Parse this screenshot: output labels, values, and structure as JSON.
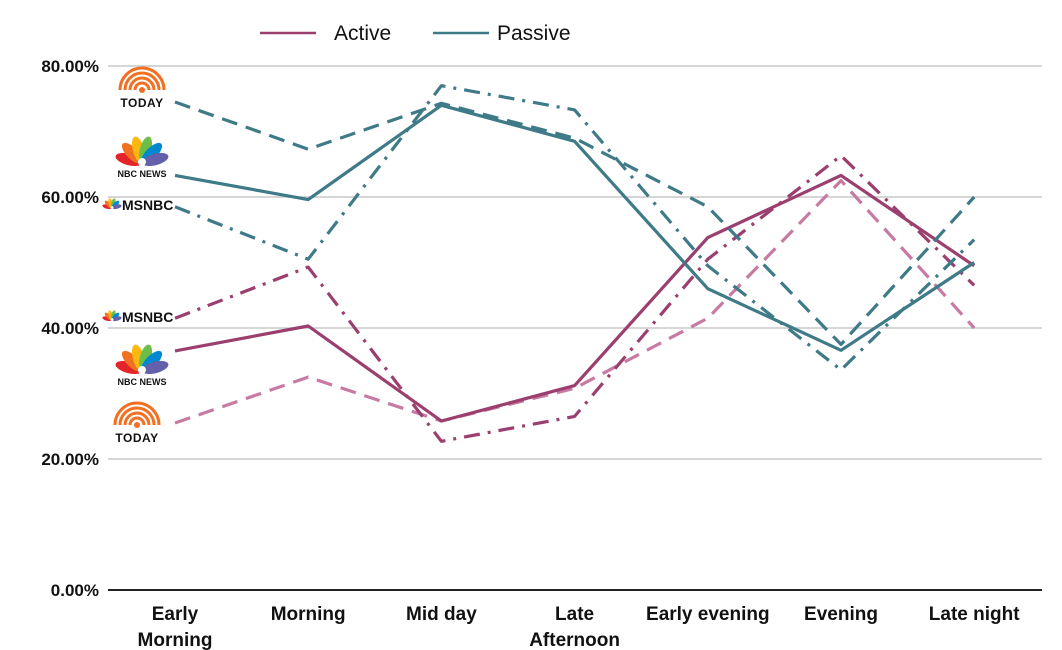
{
  "chart_data": {
    "type": "line",
    "title": "",
    "xlabel": "",
    "ylabel": "",
    "ylim": [
      0,
      80
    ],
    "y_tick_values": [
      0,
      20,
      40,
      60,
      80
    ],
    "y_tick_labels": [
      "0.00%",
      "20.00%",
      "40.00%",
      "60.00%",
      "80.00%"
    ],
    "categories": [
      [
        "Early",
        "Morning"
      ],
      [
        "Morning"
      ],
      [
        "Mid day"
      ],
      [
        "Late",
        "Afternoon"
      ],
      [
        "Early evening"
      ],
      [
        "Evening"
      ],
      [
        "Late night"
      ]
    ],
    "grid": true,
    "legend": {
      "placement": "top-center",
      "entries": [
        {
          "label": "Active",
          "color": "#9b3f6e"
        },
        {
          "label": "Passive",
          "color": "#3e7a87"
        }
      ]
    },
    "series": [
      {
        "group": "Active",
        "network": "TODAY",
        "style": "dashed",
        "color": "#c77aa2",
        "values": [
          25.5,
          32.5,
          25.8,
          30.8,
          41.5,
          62.5,
          40.0
        ]
      },
      {
        "group": "Active",
        "network": "NBC NEWS",
        "style": "solid",
        "color": "#9b3f6e",
        "values": [
          36.5,
          40.3,
          25.8,
          31.2,
          53.8,
          63.3,
          49.5
        ]
      },
      {
        "group": "Active",
        "network": "MSNBC",
        "style": "dashdot",
        "color": "#9b3f6e",
        "values": [
          41.5,
          49.3,
          22.7,
          26.5,
          50.5,
          66.3,
          46.5
        ]
      },
      {
        "group": "Passive",
        "network": "TODAY",
        "style": "dashed",
        "color": "#3e7a87",
        "values": [
          74.5,
          67.3,
          74.3,
          69.0,
          58.5,
          37.5,
          60.0
        ]
      },
      {
        "group": "Passive",
        "network": "NBC NEWS",
        "style": "solid",
        "color": "#3e7a87",
        "values": [
          63.3,
          59.6,
          74.0,
          68.5,
          46.0,
          36.6,
          50.0
        ]
      },
      {
        "group": "Passive",
        "network": "MSNBC",
        "style": "dashdot",
        "color": "#3e7a87",
        "values": [
          58.5,
          50.5,
          77.0,
          73.3,
          49.5,
          33.6,
          53.5
        ]
      }
    ],
    "series_logos": [
      {
        "network": "TODAY",
        "group": "Passive",
        "label": "TODAY",
        "icon": "today-rainbow-icon"
      },
      {
        "network": "NBC NEWS",
        "group": "Passive",
        "label": "NBC NEWS",
        "icon": "peacock-icon"
      },
      {
        "network": "MSNBC",
        "group": "Passive",
        "label": "MSNBC",
        "icon": "peacock-icon"
      },
      {
        "network": "MSNBC",
        "group": "Active",
        "label": "MSNBC",
        "icon": "peacock-icon"
      },
      {
        "network": "NBC NEWS",
        "group": "Active",
        "label": "NBC NEWS",
        "icon": "peacock-icon"
      },
      {
        "network": "TODAY",
        "group": "Active",
        "label": "TODAY",
        "icon": "today-rainbow-icon"
      }
    ],
    "colors": {
      "grid": "#c8c8c8",
      "axis": "#222222",
      "today_orange": "#f37021",
      "peacock": [
        "#e1252a",
        "#f37021",
        "#fcb711",
        "#6cbe45",
        "#0089d0",
        "#6460aa"
      ]
    }
  }
}
